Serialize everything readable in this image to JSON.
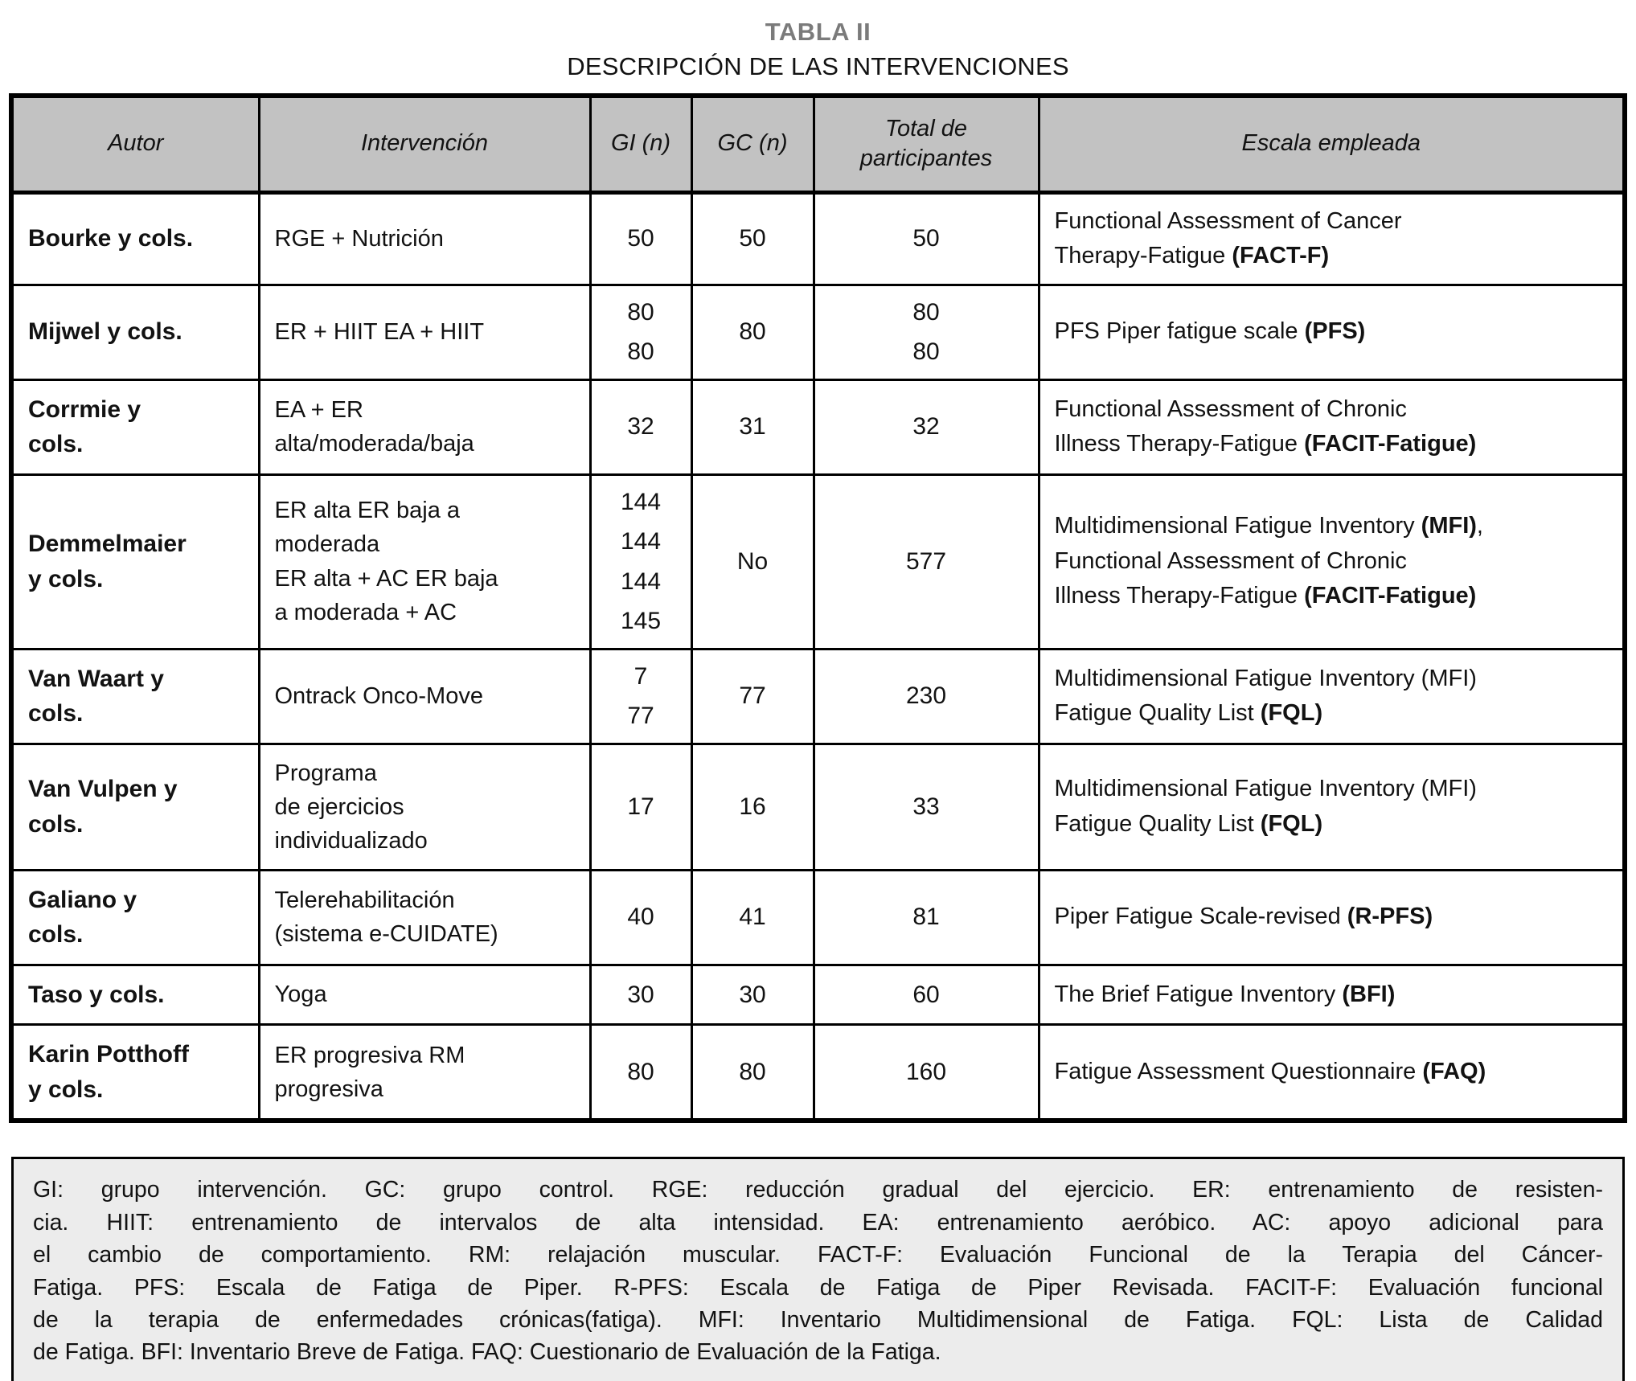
{
  "title": "TABLA II",
  "subtitle": "DESCRIPCIÓN DE LAS INTERVENCIONES",
  "colors": {
    "header_bg": "#c2c2c2",
    "footnote_bg": "#ececec",
    "title_gray": "#7b7b7b",
    "border": "#000000",
    "text": "#121212"
  },
  "table": {
    "headers": [
      "Autor",
      "Intervención",
      "GI (n)",
      "GC (n)",
      "Total de participantes",
      "Escala empleada"
    ],
    "rows": [
      {
        "autor": [
          "Bourke y cols."
        ],
        "intervencion": [
          "RGE + Nutrición"
        ],
        "gi": [
          "50"
        ],
        "gc": [
          "50"
        ],
        "total": [
          "50"
        ],
        "escala": [
          [
            {
              "t": "Functional Assessment of Cancer",
              "b": false
            }
          ],
          [
            {
              "t": "Therapy-Fatigue ",
              "b": false
            },
            {
              "t": "(FACT-F)",
              "b": true
            }
          ]
        ]
      },
      {
        "autor": [
          "Mijwel y cols."
        ],
        "intervencion": [
          "ER + HIIT EA + HIIT"
        ],
        "gi": [
          "80",
          "80"
        ],
        "gc": [
          "80"
        ],
        "total": [
          "80",
          "80"
        ],
        "escala": [
          [
            {
              "t": "PFS Piper fatigue scale ",
              "b": false
            },
            {
              "t": "(PFS)",
              "b": true
            }
          ]
        ]
      },
      {
        "autor": [
          "Corrmie y",
          "cols."
        ],
        "intervencion": [
          "EA + ER",
          "alta/moderada/baja"
        ],
        "gi": [
          "32"
        ],
        "gc": [
          "31"
        ],
        "total": [
          "32"
        ],
        "escala": [
          [
            {
              "t": "Functional Assessment of Chronic",
              "b": false
            }
          ],
          [
            {
              "t": "Illness Therapy-Fatigue ",
              "b": false
            },
            {
              "t": "(FACIT-Fatigue)",
              "b": true
            }
          ]
        ]
      },
      {
        "autor": [
          "Demmelmaier",
          "y cols."
        ],
        "intervencion": [
          "ER alta ER baja a",
          "moderada",
          "ER alta + AC ER baja",
          "a moderada + AC"
        ],
        "gi": [
          "144",
          "144",
          "144",
          "145"
        ],
        "gc": [
          "No"
        ],
        "total": [
          "577"
        ],
        "escala": [
          [
            {
              "t": "Multidimensional Fatigue Inventory ",
              "b": false
            },
            {
              "t": "(MFI)",
              "b": true
            },
            {
              "t": ",",
              "b": false
            }
          ],
          [
            {
              "t": "Functional Assessment of Chronic",
              "b": false
            }
          ],
          [
            {
              "t": "Illness Therapy-Fatigue ",
              "b": false
            },
            {
              "t": "(FACIT-Fatigue)",
              "b": true
            }
          ]
        ]
      },
      {
        "autor": [
          "Van Waart y",
          "cols."
        ],
        "intervencion": [
          "Ontrack Onco-Move"
        ],
        "gi": [
          "7",
          "77"
        ],
        "gc": [
          "77"
        ],
        "total": [
          "230"
        ],
        "escala": [
          [
            {
              "t": "Multidimensional Fatigue Inventory (MFI)",
              "b": false
            }
          ],
          [
            {
              "t": "Fatigue Quality List ",
              "b": false
            },
            {
              "t": "(FQL)",
              "b": true
            }
          ]
        ]
      },
      {
        "autor": [
          "Van Vulpen y",
          "cols."
        ],
        "intervencion": [
          "Programa",
          "de ejercicios",
          "individualizado"
        ],
        "gi": [
          "17"
        ],
        "gc": [
          "16"
        ],
        "total": [
          "33"
        ],
        "escala": [
          [
            {
              "t": "Multidimensional Fatigue Inventory (MFI)",
              "b": false
            }
          ],
          [
            {
              "t": "Fatigue Quality List ",
              "b": false
            },
            {
              "t": "(FQL)",
              "b": true
            }
          ]
        ]
      },
      {
        "autor": [
          "Galiano y",
          "cols."
        ],
        "intervencion": [
          "Telerehabilitación",
          "(sistema e-CUIDATE)"
        ],
        "gi": [
          "40"
        ],
        "gc": [
          "41"
        ],
        "total": [
          "81"
        ],
        "escala": [
          [
            {
              "t": "Piper Fatigue Scale-revised ",
              "b": false
            },
            {
              "t": "(R-PFS)",
              "b": true
            }
          ]
        ]
      },
      {
        "autor": [
          "Taso y cols."
        ],
        "intervencion": [
          "Yoga"
        ],
        "gi": [
          "30"
        ],
        "gc": [
          "30"
        ],
        "total": [
          "60"
        ],
        "escala": [
          [
            {
              "t": "The Brief Fatigue Inventory ",
              "b": false
            },
            {
              "t": "(BFI)",
              "b": true
            }
          ]
        ]
      },
      {
        "autor": [
          "Karin Potthoff",
          "y cols."
        ],
        "intervencion": [
          "ER progresiva RM",
          "progresiva"
        ],
        "gi": [
          "80"
        ],
        "gc": [
          "80"
        ],
        "total": [
          "160"
        ],
        "escala": [
          [
            {
              "t": "Fatigue Assessment Questionnaire ",
              "b": false
            },
            {
              "t": "(FAQ)",
              "b": true
            }
          ]
        ]
      }
    ]
  },
  "footnote": {
    "lines": [
      "GI: grupo intervención. GC: grupo control. RGE: reducción gradual del ejercicio. ER: entrenamiento de resisten-",
      "cia. HIIT: entrenamiento de intervalos de alta intensidad. EA: entrenamiento aeróbico. AC: apoyo adicional para",
      "el cambio de comportamiento. RM: relajación muscular. FACT-F: Evaluación Funcional de la Terapia del Cáncer-",
      "Fatiga. PFS: Escala de Fatiga de Piper. R-PFS: Escala de Fatiga de Piper Revisada. FACIT-F: Evaluación funcional",
      "de la terapia de enfermedades crónicas(fatiga). MFI: Inventario Multidimensional de Fatiga. FQL: Lista de Calidad",
      "de Fatiga. BFI: Inventario Breve de Fatiga. FAQ: Cuestionario de Evaluación de la Fatiga."
    ]
  }
}
